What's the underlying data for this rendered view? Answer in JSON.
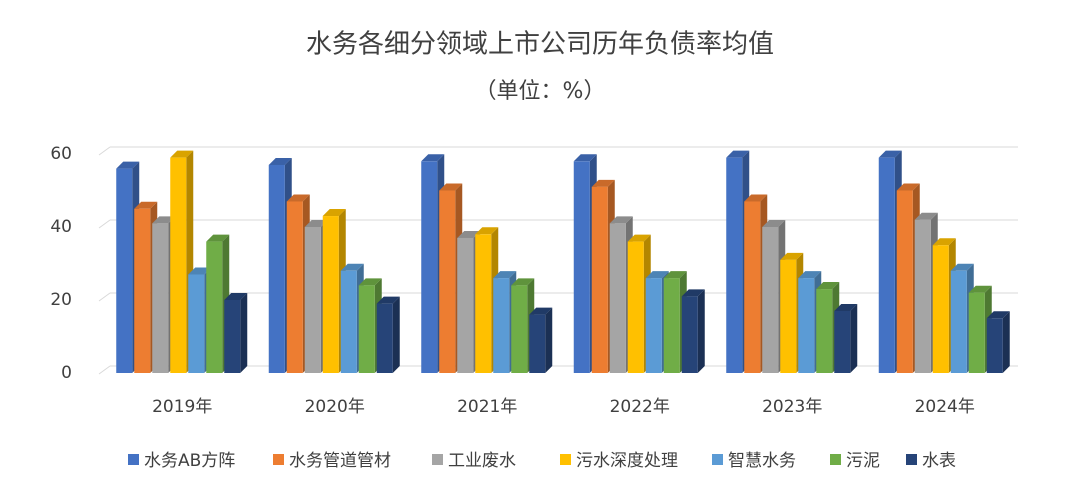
{
  "chart_data": {
    "type": "bar3d",
    "title": "水务各细分领域上市公司历年负债率均值",
    "subtitle": "（单位：%）",
    "categories": [
      "2019年",
      "2020年",
      "2021年",
      "2022年",
      "2023年",
      "2024年"
    ],
    "series": [
      {
        "name": "水务AB方阵",
        "color": "#4472c4",
        "values": [
          56,
          57,
          58,
          58,
          59,
          59
        ]
      },
      {
        "name": "水务管道管材",
        "color": "#ed7d31",
        "values": [
          45,
          47,
          50,
          51,
          47,
          50
        ]
      },
      {
        "name": "工业废水",
        "color": "#a5a5a5",
        "values": [
          41,
          40,
          37,
          41,
          40,
          42
        ]
      },
      {
        "name": "污水深度处理",
        "color": "#ffc000",
        "values": [
          59,
          43,
          38,
          36,
          31,
          35
        ]
      },
      {
        "name": "智慧水务",
        "color": "#5b9bd5",
        "values": [
          27,
          28,
          26,
          26,
          26,
          28
        ]
      },
      {
        "name": "污泥",
        "color": "#70ad47",
        "values": [
          36,
          24,
          24,
          26,
          23,
          22
        ]
      },
      {
        "name": "水表",
        "color": "#264478",
        "values": [
          20,
          19,
          16,
          21,
          17,
          15
        ]
      }
    ],
    "ylim": [
      0,
      60
    ],
    "yticks": [
      0,
      20,
      40,
      60
    ],
    "grid": true
  }
}
